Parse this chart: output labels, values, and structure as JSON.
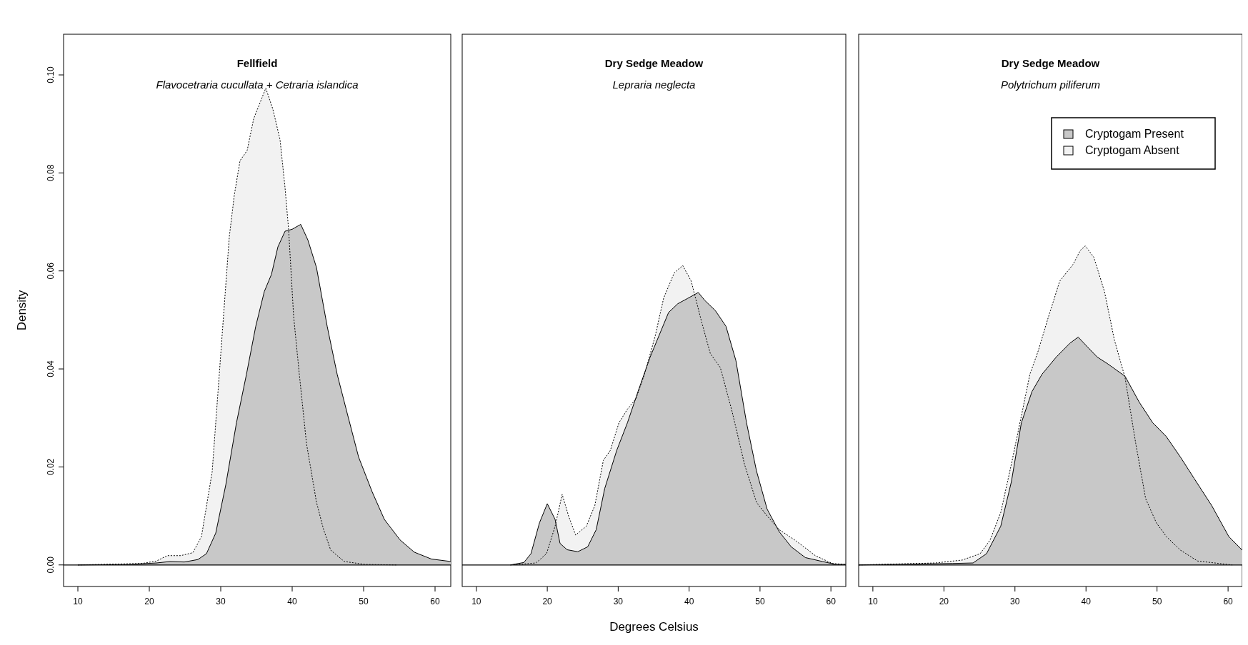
{
  "chart_data": [
    {
      "type": "area",
      "title": "Fellfield",
      "subtitle": "Flavocetraria cucullata + Cetraria islandica",
      "ylabel": "Density",
      "xlim": [
        8,
        62.2
      ],
      "ylim": [
        -0.0044,
        0.1083
      ],
      "xticks": [
        10,
        20,
        30,
        40,
        50,
        60
      ],
      "yticks": [
        {
          "value": 0,
          "label": "0.00"
        },
        {
          "value": 0.02,
          "label": "0.02"
        },
        {
          "value": 0.04,
          "label": "0.04"
        },
        {
          "value": 0.06,
          "label": "0.06"
        },
        {
          "value": 0.08,
          "label": "0.08"
        },
        {
          "value": 0.1,
          "label": "0.10"
        }
      ],
      "ref_lines": [
        {
          "axis": "y",
          "value": 0,
          "color": "#000000"
        }
      ],
      "series": [
        {
          "color": "#c8c8c8",
          "line_style": "solid",
          "x": [
            10,
            17,
            21,
            22.9,
            24.9,
            26.8,
            28,
            29.3,
            30.7,
            32.2,
            33.6,
            34.9,
            36.1,
            37.1,
            38,
            39,
            40,
            41.2,
            42.2,
            43.4,
            44.9,
            46.3,
            47.8,
            49.3,
            51.2,
            52.9,
            55.1,
            57.1,
            59.5,
            62.2
          ],
          "values": [
            0,
            0.0001,
            0.0004,
            0.0007,
            0.0006,
            0.0011,
            0.0023,
            0.0065,
            0.0163,
            0.029,
            0.0389,
            0.0487,
            0.0558,
            0.0593,
            0.0649,
            0.0681,
            0.0685,
            0.0695,
            0.0663,
            0.0607,
            0.0487,
            0.0389,
            0.0304,
            0.022,
            0.0149,
            0.0093,
            0.0051,
            0.0026,
            0.0012,
            0.0007
          ]
        },
        {
          "color": "#f2f2f2",
          "line_style": "dotted",
          "x": [
            10,
            19,
            21,
            22.5,
            24.4,
            26.1,
            27.3,
            28.8,
            30.2,
            31.2,
            31.9,
            32.7,
            33.7,
            34.6,
            36.3,
            37.3,
            38.3,
            39,
            39.5,
            40.2,
            41,
            42,
            43.4,
            44.4,
            45.4,
            47.3,
            50.2,
            54.6
          ],
          "values": [
            0,
            0.0003,
            0.0008,
            0.0019,
            0.0019,
            0.0025,
            0.0058,
            0.019,
            0.047,
            0.067,
            0.0755,
            0.0825,
            0.0846,
            0.091,
            0.0973,
            0.093,
            0.0868,
            0.077,
            0.0685,
            0.0508,
            0.0389,
            0.0248,
            0.0128,
            0.0072,
            0.003,
            0.0007,
            0.0001,
            0
          ]
        }
      ]
    },
    {
      "type": "area",
      "title": "Dry Sedge Meadow",
      "subtitle": "Lepraria neglecta",
      "xlabel": "Degrees Celsius",
      "tick_labels": "x",
      "xlim": [
        8,
        62.1
      ],
      "ylim": [
        -0.0044,
        0.1083
      ],
      "xticks": [
        10,
        20,
        30,
        40,
        50,
        60
      ],
      "ref_lines": [
        {
          "axis": "y",
          "value": 0,
          "color": "#000000"
        }
      ],
      "series": [
        {
          "color": "#c8c8c8",
          "line_style": "solid",
          "x": [
            14.8,
            16.7,
            17.7,
            18.9,
            20,
            21.1,
            21.8,
            22.8,
            24.3,
            25.7,
            26.9,
            28.1,
            29.8,
            31.3,
            32.8,
            34.5,
            35.9,
            37.1,
            38.4,
            39.8,
            41.3,
            42.2,
            43.7,
            45.2,
            46.6,
            48.1,
            49.5,
            51,
            52.7,
            54.4,
            56.4,
            58.8,
            60.7,
            62.1
          ],
          "values": [
            0,
            0.0005,
            0.0023,
            0.0086,
            0.0125,
            0.0093,
            0.0044,
            0.0031,
            0.0027,
            0.0037,
            0.0072,
            0.0156,
            0.0234,
            0.029,
            0.0354,
            0.0424,
            0.0473,
            0.0515,
            0.0533,
            0.0544,
            0.0556,
            0.054,
            0.0519,
            0.0487,
            0.0417,
            0.029,
            0.0192,
            0.0114,
            0.0068,
            0.0037,
            0.0015,
            0.0007,
            0.0001,
            0.0001
          ]
        },
        {
          "color": "#f2f2f2",
          "line_style": "dotted",
          "x": [
            14.8,
            18.4,
            19.9,
            21.1,
            22.1,
            23,
            24,
            25.5,
            26.7,
            27.9,
            28.9,
            30.1,
            31.3,
            32.5,
            33.7,
            35.2,
            36.4,
            37.9,
            39.1,
            40.3,
            41.8,
            43,
            44.4,
            46.1,
            47.8,
            49.5,
            51,
            52.7,
            54.9,
            57.8,
            60.2,
            62.1
          ],
          "values": [
            0,
            0.0004,
            0.0023,
            0.0079,
            0.0144,
            0.01,
            0.0061,
            0.0079,
            0.0121,
            0.0213,
            0.0234,
            0.029,
            0.0318,
            0.0339,
            0.0389,
            0.0466,
            0.0544,
            0.0596,
            0.0611,
            0.0579,
            0.0494,
            0.0431,
            0.0403,
            0.0311,
            0.0206,
            0.0128,
            0.01,
            0.0072,
            0.0051,
            0.0019,
            0.0003,
            0.0001
          ]
        }
      ]
    },
    {
      "type": "area",
      "title": "Dry Sedge Meadow",
      "subtitle": "Polytrichum piliferum",
      "tick_labels": "x",
      "legend": "top right",
      "xlim": [
        8,
        62
      ],
      "ylim": [
        -0.0044,
        0.1083
      ],
      "xticks": [
        10,
        20,
        30,
        40,
        50,
        60
      ],
      "ref_lines": [
        {
          "axis": "y",
          "value": 0,
          "color": "#000000"
        }
      ],
      "series": [
        {
          "name": "Cryptogam Present",
          "color": "#c8c8c8",
          "line_style": "solid",
          "x": [
            8,
            21.2,
            24.1,
            26,
            28,
            29.5,
            30.9,
            32.4,
            33.8,
            35.8,
            37.7,
            38.9,
            40.2,
            41.6,
            43.1,
            45.5,
            47.5,
            49.4,
            51.3,
            53.3,
            55.2,
            57.7,
            60.1,
            62
          ],
          "values": [
            0,
            0.0003,
            0.0004,
            0.0023,
            0.0079,
            0.017,
            0.029,
            0.0354,
            0.0389,
            0.0424,
            0.0452,
            0.0465,
            0.0445,
            0.0424,
            0.041,
            0.0385,
            0.0332,
            0.029,
            0.0262,
            0.022,
            0.0177,
            0.0121,
            0.0058,
            0.003
          ]
        },
        {
          "name": "Cryptogam Absent",
          "color": "#f2f2f2",
          "line_style": "dotted",
          "x": [
            8,
            18.8,
            22.6,
            25.1,
            26.5,
            28,
            29.5,
            30.9,
            32.1,
            33.3,
            34.6,
            36.3,
            38.2,
            39.2,
            39.9,
            41.1,
            42.6,
            44,
            45.5,
            47,
            48.4,
            49.9,
            51.3,
            53.3,
            55.7,
            60.6
          ],
          "values": [
            0,
            0.0004,
            0.001,
            0.0023,
            0.0051,
            0.0107,
            0.0206,
            0.0304,
            0.0389,
            0.0438,
            0.0501,
            0.0579,
            0.0614,
            0.0642,
            0.0651,
            0.0628,
            0.0558,
            0.0459,
            0.0382,
            0.0248,
            0.0135,
            0.0086,
            0.0058,
            0.003,
            0.0008,
            0
          ]
        }
      ]
    }
  ]
}
